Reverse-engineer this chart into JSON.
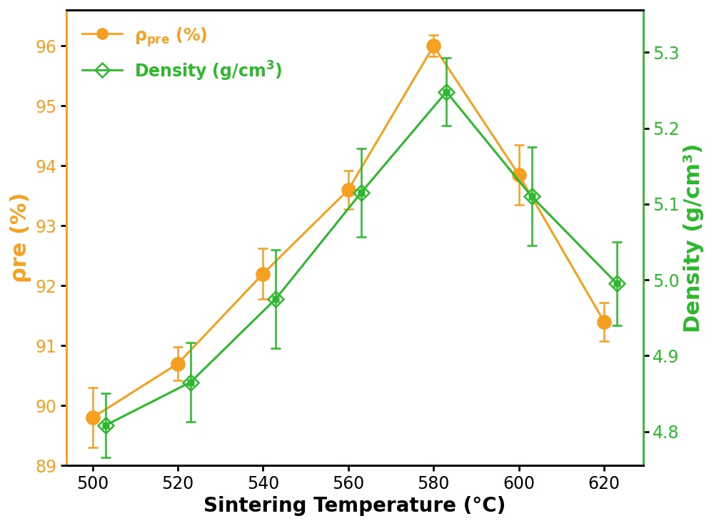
{
  "x": [
    500,
    520,
    540,
    560,
    580,
    600,
    620
  ],
  "x_density": [
    503,
    523,
    543,
    563,
    583,
    603,
    623
  ],
  "rho_pre": [
    89.8,
    90.7,
    92.2,
    93.6,
    96.0,
    93.85,
    91.4
  ],
  "rho_pre_err": [
    0.5,
    0.28,
    0.42,
    0.32,
    0.18,
    0.5,
    0.32
  ],
  "density": [
    4.808,
    4.865,
    4.975,
    5.115,
    5.248,
    5.11,
    4.995
  ],
  "density_err": [
    0.042,
    0.052,
    0.065,
    0.058,
    0.045,
    0.065,
    0.055
  ],
  "orange_color": "#F5A020",
  "green_color": "#2DB82D",
  "xlabel": "Sintering Temperature (°C)",
  "ylabel_left": "ρre (%)",
  "ylabel_right": "Density (g/cm³)",
  "ylim_left": [
    89,
    96.6
  ],
  "ylim_right": [
    4.755,
    5.356
  ],
  "yticks_left": [
    89,
    90,
    91,
    92,
    93,
    94,
    95,
    96
  ],
  "yticks_right": [
    4.8,
    4.9,
    5.0,
    5.1,
    5.2,
    5.3
  ],
  "xticks": [
    500,
    520,
    540,
    560,
    580,
    600,
    620
  ],
  "label_fontsize": 20,
  "tick_fontsize": 17,
  "legend_fontsize": 16,
  "background_color": "#ffffff"
}
